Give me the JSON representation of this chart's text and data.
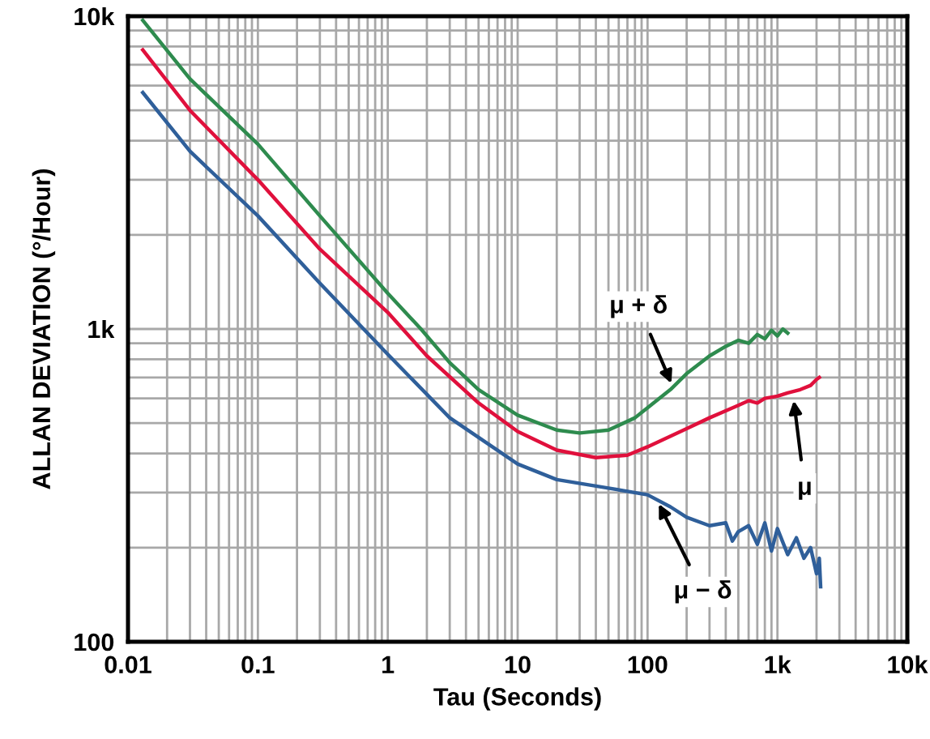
{
  "chart_data": {
    "type": "line",
    "xlabel": "Tau (Seconds)",
    "ylabel": "ALLAN DEVIATION (°/Hour)",
    "log": "xy",
    "grid": true,
    "xlim": [
      0.01,
      10000
    ],
    "ylim": [
      100,
      10000
    ],
    "xticks": [
      0.01,
      0.1,
      1,
      10,
      100,
      {
        "value": 1000,
        "label": "1k"
      },
      {
        "value": 10000,
        "label": "10k"
      }
    ],
    "yticks": [
      100,
      {
        "value": 1000,
        "label": "1k"
      },
      {
        "value": 10000,
        "label": "10k"
      }
    ],
    "series": [
      {
        "color": "#2e8b4e",
        "x": [
          0.013,
          0.03,
          0.1,
          0.3,
          1,
          1.8,
          3,
          5,
          10,
          20,
          30,
          50,
          80,
          100,
          150,
          200,
          300,
          400,
          500,
          600,
          700,
          800,
          900,
          1000,
          1100,
          1200
        ],
        "values": [
          9700,
          6300,
          3900,
          2300,
          1300,
          1000,
          780,
          640,
          530,
          475,
          465,
          475,
          520,
          560,
          640,
          720,
          820,
          880,
          920,
          900,
          960,
          930,
          990,
          950,
          1000,
          970
        ]
      },
      {
        "color": "#e0103c",
        "x": [
          0.013,
          0.03,
          0.1,
          0.3,
          1,
          2,
          5,
          10,
          20,
          40,
          70,
          100,
          200,
          300,
          500,
          600,
          700,
          800,
          1000,
          1200,
          1500,
          1800,
          2000,
          2100
        ],
        "values": [
          7800,
          5000,
          3000,
          1800,
          1130,
          820,
          580,
          470,
          410,
          388,
          395,
          420,
          480,
          520,
          570,
          590,
          580,
          600,
          610,
          625,
          640,
          660,
          690,
          700
        ]
      },
      {
        "color": "#2f5f9a",
        "x": [
          0.013,
          0.03,
          0.1,
          0.3,
          1,
          3,
          10,
          20,
          50,
          100,
          150,
          200,
          300,
          400,
          450,
          500,
          600,
          700,
          800,
          900,
          1000,
          1200,
          1400,
          1600,
          1800,
          2000,
          2100,
          2150
        ],
        "values": [
          5700,
          3700,
          2300,
          1400,
          830,
          520,
          370,
          330,
          310,
          295,
          270,
          250,
          235,
          240,
          210,
          225,
          235,
          205,
          240,
          195,
          230,
          190,
          215,
          185,
          200,
          165,
          185,
          150
        ]
      }
    ],
    "annotations": [
      {
        "text": "μ + δ",
        "x": 155,
        "y": 660
      },
      {
        "text": "μ",
        "x": 1330,
        "y": 600
      },
      {
        "text": "μ − δ",
        "x": 120,
        "y": 280
      }
    ]
  }
}
